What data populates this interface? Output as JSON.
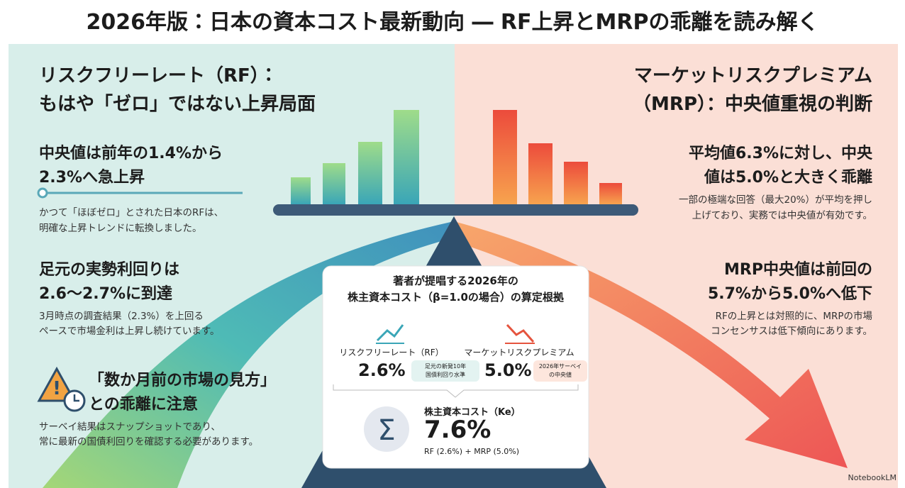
{
  "title": "2026年版：日本の資本コスト最新動向 ― RF上昇とMRPの乖離を読み解く",
  "left": {
    "heading": [
      "リスクフリーレート（RF）：",
      "もはや「ゼロ」ではない上昇局面"
    ],
    "sections": [
      {
        "title": [
          "中央値は前年の1.4%から",
          "2.3%へ急上昇"
        ],
        "body": [
          "かつて「ほぼゼロ」とされた日本のRFは、",
          "明確な上昇トレンドに転換しました。"
        ]
      },
      {
        "title": [
          "足元の実勢利回りは",
          "2.6〜2.7%に到達"
        ],
        "body": [
          "3月時点の調査結果（2.3%）を上回る",
          "ペースで市場金利は上昇し続けています。"
        ]
      },
      {
        "title": [
          "「数か月前の市場の見方」",
          "との乖離に注意"
        ],
        "body": [
          "サーベイ結果はスナップショットであり、",
          "常に最新の国債利回りを確認する必要があります。"
        ]
      }
    ]
  },
  "right": {
    "heading": [
      "マーケットリスクプレミアム",
      "（MRP）：中央値重視の判断"
    ],
    "sections": [
      {
        "title": [
          "平均値6.3%に対し、中央",
          "値は5.0%と大きく乖離"
        ],
        "body": [
          "一部の極端な回答（最大20%）が平均を押し",
          "上げており、実務では中央値が有効です。"
        ]
      },
      {
        "title": [
          "MRP中央値は前回の",
          "5.7%から5.0%へ低下"
        ],
        "body": [
          "RFの上昇とは対照的に、MRPの市場",
          "コンセンサスは低下傾向にあります。"
        ]
      }
    ]
  },
  "center": {
    "title": [
      "著者が提唱する2026年の",
      "株主資本コスト（β=1.0の場合）の算定根拠"
    ],
    "rf": {
      "label": "リスクフリーレート（RF）",
      "value": "2.6%",
      "note": [
        "足元の新発10年",
        "国債利回り水準"
      ]
    },
    "mrp": {
      "label": "マーケットリスクプレミアム",
      "value": "5.0%",
      "note": [
        "2026年サーベイ",
        "の中央値"
      ]
    },
    "ke": {
      "label": "株主資本コスト（Ke）",
      "value": "7.6%",
      "formula": "RF (2.6%) + MRP (5.0%)"
    }
  },
  "footer": "NotebookLM"
}
